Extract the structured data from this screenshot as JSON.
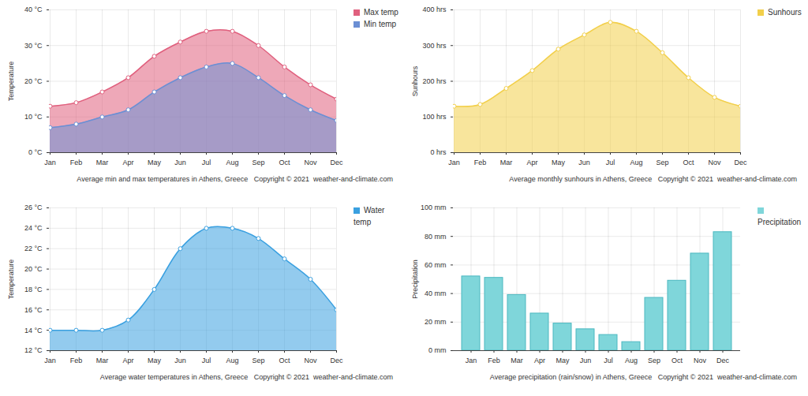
{
  "chart_data": [
    {
      "type": "area",
      "title": "Average min and max temperatures in Athens, Greece",
      "caption": "Copyright © 2021  weather-and-climate.com",
      "y_label": "Temperature",
      "categories": [
        "Jan",
        "Feb",
        "Mar",
        "Apr",
        "May",
        "Jun",
        "Jul",
        "Aug",
        "Sep",
        "Oct",
        "Nov",
        "Dec"
      ],
      "series": [
        {
          "name": "Max temp",
          "color": "#e0607e",
          "marker": "circle",
          "values": [
            13,
            14,
            17,
            21,
            27,
            31,
            34,
            34,
            30,
            24,
            19,
            15
          ]
        },
        {
          "name": "Min temp",
          "color": "#6b8fd4",
          "marker": "circle",
          "values": [
            7,
            8,
            10,
            12,
            17,
            21,
            24,
            25,
            21,
            16,
            12,
            9
          ]
        }
      ],
      "ylim": [
        0,
        40
      ],
      "yticks": [
        {
          "value": 0,
          "label": "0 °C"
        },
        {
          "value": 10,
          "label": "10 °C"
        },
        {
          "value": 20,
          "label": "20 °C"
        },
        {
          "value": 30,
          "label": "30 °C"
        },
        {
          "value": 40,
          "label": "40 °C"
        }
      ],
      "grid": true,
      "legend": "right"
    },
    {
      "type": "area",
      "title": "Average monthly sunhours in Athens, Greece",
      "caption": "Copyright © 2021  weather-and-climate.com",
      "y_label": "Sunhours",
      "categories": [
        "Jan",
        "Feb",
        "Mar",
        "Apr",
        "May",
        "Jun",
        "Jul",
        "Aug",
        "Sep",
        "Oct",
        "Nov",
        "Dec"
      ],
      "series": [
        {
          "name": "Sunhours",
          "color": "#f2cf4a",
          "marker": "circle",
          "values": [
            130,
            135,
            180,
            230,
            290,
            330,
            365,
            340,
            280,
            210,
            155,
            130
          ]
        }
      ],
      "ylim": [
        0,
        400
      ],
      "yticks": [
        {
          "value": 0,
          "label": "0 hrs"
        },
        {
          "value": 100,
          "label": "100 hrs"
        },
        {
          "value": 200,
          "label": "200 hrs"
        },
        {
          "value": 300,
          "label": "300 hrs"
        },
        {
          "value": 400,
          "label": "400 hrs"
        }
      ],
      "grid": true,
      "legend": "right"
    },
    {
      "type": "area",
      "title": "Average water temperatures in Athens, Greece",
      "caption": "Copyright © 2021  weather-and-climate.com",
      "y_label": "Temperature",
      "categories": [
        "Jan",
        "Feb",
        "Mar",
        "Apr",
        "May",
        "Jun",
        "Jul",
        "Aug",
        "Sep",
        "Oct",
        "Nov",
        "Dec"
      ],
      "series": [
        {
          "name": "Water temp",
          "color": "#3aa0e0",
          "marker": "circle",
          "values": [
            14,
            14,
            14,
            15,
            18,
            22,
            24,
            24,
            23,
            21,
            19,
            16
          ]
        }
      ],
      "ylim": [
        12,
        26
      ],
      "yticks": [
        {
          "value": 12,
          "label": "12 °C"
        },
        {
          "value": 14,
          "label": "14 °C"
        },
        {
          "value": 16,
          "label": "16 °C"
        },
        {
          "value": 18,
          "label": "18 °C"
        },
        {
          "value": 20,
          "label": "20 °C"
        },
        {
          "value": 22,
          "label": "22 °C"
        },
        {
          "value": 24,
          "label": "24 °C"
        },
        {
          "value": 26,
          "label": "26 °C"
        }
      ],
      "grid": true,
      "legend": "right"
    },
    {
      "type": "bar",
      "title": "Average precipitation (rain/snow) in Athens, Greece",
      "caption": "Copyright © 2021  weather-and-climate.com",
      "y_label": "Precipitation",
      "categories": [
        "Jan",
        "Feb",
        "Mar",
        "Apr",
        "May",
        "Jun",
        "Jul",
        "Aug",
        "Sep",
        "Oct",
        "Nov",
        "Dec"
      ],
      "series": [
        {
          "name": "Precipitation",
          "color": "#7fd6da",
          "values": [
            52,
            51,
            39,
            26,
            19,
            15,
            11,
            6,
            37,
            49,
            68,
            83
          ]
        }
      ],
      "ylim": [
        0,
        100
      ],
      "yticks": [
        {
          "value": 0,
          "label": "0 mm"
        },
        {
          "value": 20,
          "label": "20 mm"
        },
        {
          "value": 40,
          "label": "40 mm"
        },
        {
          "value": 60,
          "label": "60 mm"
        },
        {
          "value": 80,
          "label": "80 mm"
        },
        {
          "value": 100,
          "label": "100 mm"
        }
      ],
      "grid": true,
      "legend": "right"
    }
  ]
}
